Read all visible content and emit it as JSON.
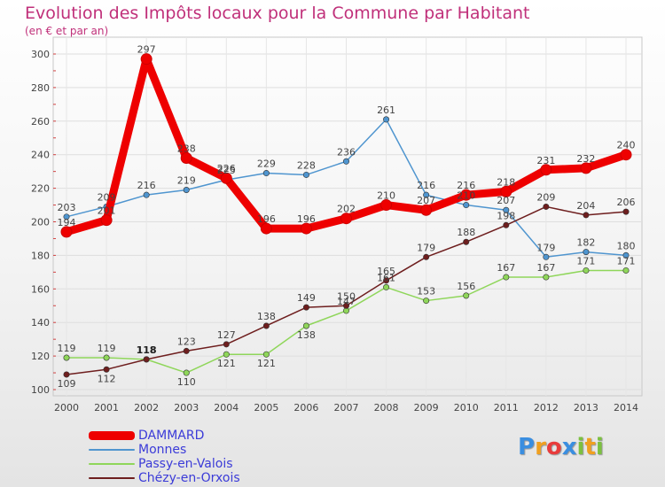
{
  "title": "Evolution des Impôts locaux pour la Commune par Habitant",
  "subtitle": "(en € et par an)",
  "logo": "Proxiti",
  "chart_data": {
    "type": "line",
    "title": "Evolution des Impôts locaux pour la Commune par Habitant",
    "subtitle": "(en € et par an)",
    "xlabel": "",
    "ylabel": "",
    "categories": [
      "2000",
      "2001",
      "2002",
      "2003",
      "2004",
      "2005",
      "2006",
      "2007",
      "2008",
      "2009",
      "2010",
      "2011",
      "2012",
      "2013",
      "2014"
    ],
    "ylim": [
      100,
      300
    ],
    "yticks": [
      100,
      120,
      140,
      160,
      180,
      200,
      220,
      240,
      260,
      280,
      300
    ],
    "grid": true,
    "legend_position": "bottom-left",
    "series": [
      {
        "name": "DAMMARD",
        "color": "#ee0000",
        "values": [
          194,
          201,
          297,
          238,
          226,
          196,
          196,
          202,
          210,
          207,
          216,
          218,
          231,
          232,
          240
        ]
      },
      {
        "name": "Monnes",
        "color": "#4f95cf",
        "values": [
          203,
          209,
          216,
          219,
          225,
          229,
          228,
          236,
          261,
          216,
          210,
          207,
          179,
          182,
          180
        ]
      },
      {
        "name": "Passy-en-Valois",
        "color": "#8fd65a",
        "values": [
          119,
          119,
          118,
          110,
          121,
          121,
          138,
          147,
          161,
          153,
          156,
          167,
          167,
          171,
          171
        ]
      },
      {
        "name": "Chézy-en-Orxois",
        "color": "#6e1e1e",
        "values": [
          109,
          112,
          118,
          123,
          127,
          138,
          149,
          150,
          165,
          179,
          188,
          198,
          209,
          204,
          206
        ]
      }
    ]
  }
}
